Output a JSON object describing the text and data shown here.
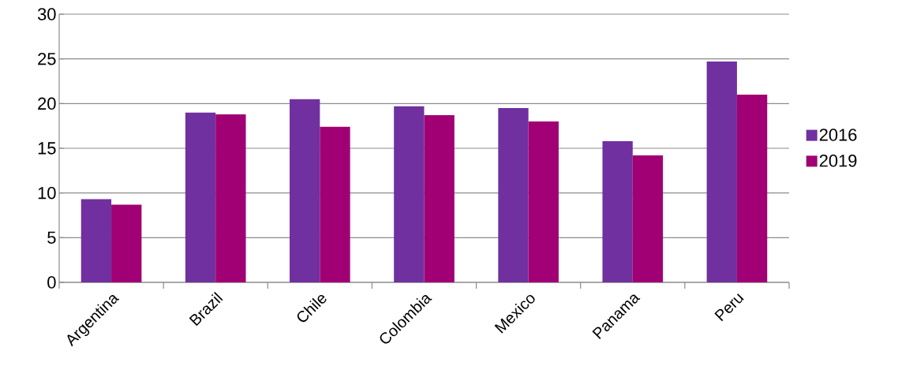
{
  "chart_data": {
    "type": "bar",
    "categories": [
      "Argentina",
      "Brazil",
      "Chile",
      "Colombia",
      "Mexico",
      "Panama",
      "Peru"
    ],
    "series": [
      {
        "name": "2016",
        "color": "#7030a0",
        "values": [
          9.3,
          19.0,
          20.5,
          19.7,
          19.5,
          15.8,
          24.7
        ]
      },
      {
        "name": "2019",
        "color": "#a10074",
        "values": [
          8.7,
          18.8,
          17.4,
          18.7,
          18.0,
          14.2,
          21.0
        ]
      }
    ],
    "ylim": [
      0,
      30
    ],
    "yticks": [
      0,
      5,
      10,
      15,
      20,
      25,
      30
    ],
    "grid": "y",
    "legend": "right"
  }
}
